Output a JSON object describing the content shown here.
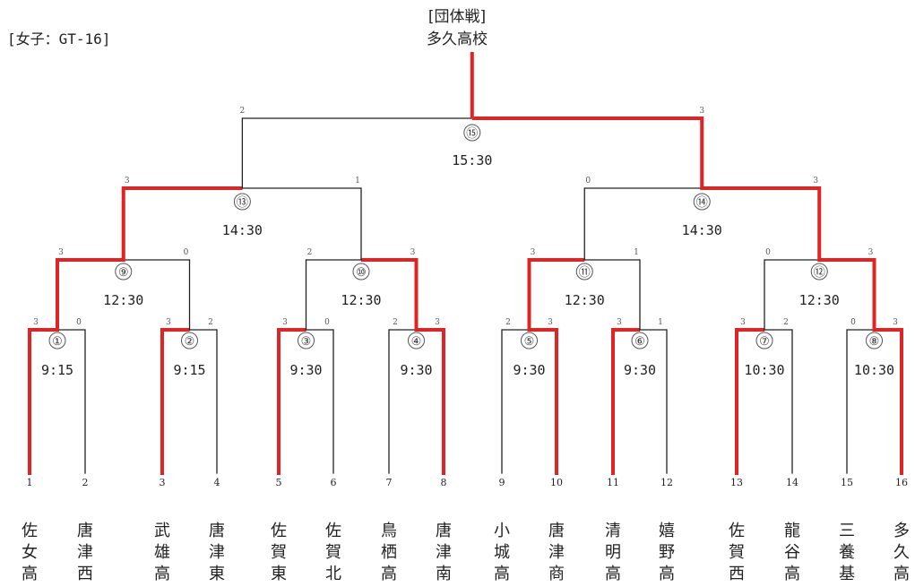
{
  "header": {
    "event": "[団体戦]",
    "champion": "多久高校",
    "category": "[女子：GT-16]"
  },
  "colors": {
    "winner_line": "#e02424",
    "normal_line": "#222222"
  },
  "teams": [
    {
      "seed": "1",
      "name": "佐女高"
    },
    {
      "seed": "2",
      "name": "唐津西"
    },
    {
      "seed": "3",
      "name": "武雄高"
    },
    {
      "seed": "4",
      "name": "唐津東"
    },
    {
      "seed": "5",
      "name": "佐賀東"
    },
    {
      "seed": "6",
      "name": "佐賀北"
    },
    {
      "seed": "7",
      "name": "鳥栖高"
    },
    {
      "seed": "8",
      "name": "唐津南"
    },
    {
      "seed": "9",
      "name": "小城高"
    },
    {
      "seed": "10",
      "name": "唐津商"
    },
    {
      "seed": "11",
      "name": "清明高"
    },
    {
      "seed": "12",
      "name": "嬉野高"
    },
    {
      "seed": "13",
      "name": "佐賀西"
    },
    {
      "seed": "14",
      "name": "龍谷高"
    },
    {
      "seed": "15",
      "name": "三養基"
    },
    {
      "seed": "16",
      "name": "多久高"
    }
  ],
  "matches": [
    {
      "id": 1,
      "label": "①",
      "time": "9:15",
      "scores": [
        "3",
        "0"
      ],
      "winner": 0
    },
    {
      "id": 2,
      "label": "②",
      "time": "9:15",
      "scores": [
        "3",
        "2"
      ],
      "winner": 0
    },
    {
      "id": 3,
      "label": "③",
      "time": "9:30",
      "scores": [
        "3",
        "0"
      ],
      "winner": 0
    },
    {
      "id": 4,
      "label": "④",
      "time": "9:30",
      "scores": [
        "2",
        "3"
      ],
      "winner": 1
    },
    {
      "id": 5,
      "label": "⑤",
      "time": "9:30",
      "scores": [
        "2",
        "3"
      ],
      "winner": 1
    },
    {
      "id": 6,
      "label": "⑥",
      "time": "9:30",
      "scores": [
        "3",
        "1"
      ],
      "winner": 0
    },
    {
      "id": 7,
      "label": "⑦",
      "time": "10:30",
      "scores": [
        "3",
        "2"
      ],
      "winner": 0
    },
    {
      "id": 8,
      "label": "⑧",
      "time": "10:30",
      "scores": [
        "0",
        "3"
      ],
      "winner": 1
    },
    {
      "id": 9,
      "label": "⑨",
      "time": "12:30",
      "scores": [
        "3",
        "0"
      ],
      "winner": 0
    },
    {
      "id": 10,
      "label": "⑩",
      "time": "12:30",
      "scores": [
        "2",
        "3"
      ],
      "winner": 1
    },
    {
      "id": 11,
      "label": "⑪",
      "time": "12:30",
      "scores": [
        "3",
        "1"
      ],
      "winner": 0
    },
    {
      "id": 12,
      "label": "⑫",
      "time": "12:30",
      "scores": [
        "0",
        "3"
      ],
      "winner": 1
    },
    {
      "id": 13,
      "label": "⑬",
      "time": "14:30",
      "scores": [
        "3",
        "1"
      ],
      "winner": 0
    },
    {
      "id": 14,
      "label": "⑭",
      "time": "14:30",
      "scores": [
        "0",
        "3"
      ],
      "winner": 1
    },
    {
      "id": 15,
      "label": "⑮",
      "time": "15:30",
      "scores": [
        "2",
        "3"
      ],
      "winner": 1
    }
  ]
}
